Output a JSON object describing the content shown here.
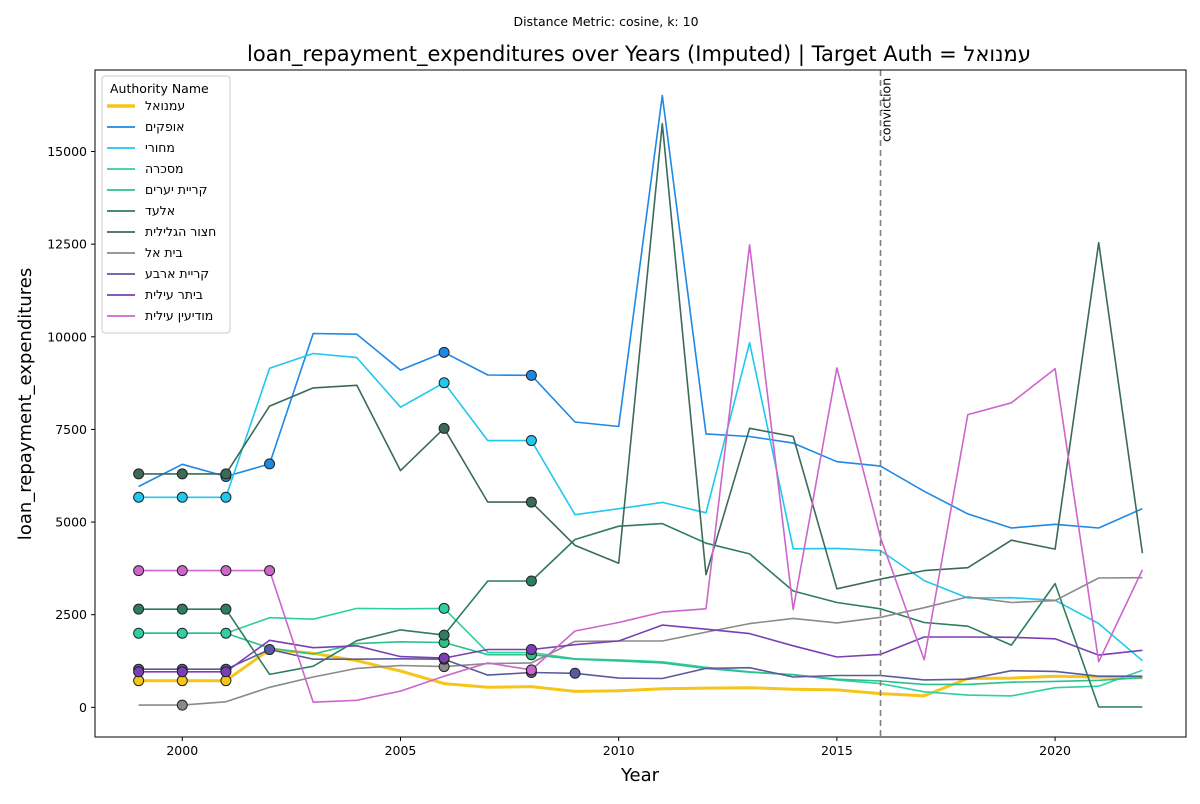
{
  "chart_data": {
    "type": "line",
    "suptitle": "Distance Metric: cosine, k: 10",
    "title": "loan_repayment_expenditures over Years (Imputed) | Target Auth = עמנואל",
    "xlabel": "Year",
    "ylabel": "loan_repayment_expenditures",
    "xlim": [
      1998,
      2023
    ],
    "ylim": [
      -800,
      17200
    ],
    "xticks": [
      2000,
      2005,
      2010,
      2015,
      2020
    ],
    "yticks": [
      0,
      2500,
      5000,
      7500,
      10000,
      12500,
      15000
    ],
    "ytick_labels": [
      "0",
      "2500",
      "5000",
      "7500",
      "10000",
      "12500",
      "15000"
    ],
    "grid": false,
    "legend_title": "Authority Name",
    "legend_position": "top-left",
    "vline": {
      "x": 2016,
      "label": "conviction",
      "color": "#808080"
    },
    "x": [
      1999,
      2000,
      2001,
      2002,
      2003,
      2004,
      2005,
      2006,
      2007,
      2008,
      2009,
      2010,
      2011,
      2012,
      2013,
      2014,
      2015,
      2016,
      2017,
      2018,
      2019,
      2020,
      2021,
      2022
    ],
    "series": [
      {
        "name": "עמנואל",
        "color": "#f5c518",
        "width": 3,
        "values": [
          720,
          720,
          720,
          1560,
          1460,
          1260,
          980,
          640,
          540,
          560,
          430,
          450,
          500,
          520,
          530,
          490,
          470,
          370,
          310,
          780,
          790,
          840,
          820,
          800
        ],
        "imputed_years": [
          1999,
          2000,
          2001
        ]
      },
      {
        "name": "אופקים",
        "color": "#1e88e5",
        "width": 1.6,
        "values": [
          5960,
          6560,
          6230,
          6570,
          10090,
          10070,
          9100,
          9580,
          8970,
          8960,
          7700,
          7580,
          16510,
          7380,
          7310,
          7130,
          6630,
          6510,
          5830,
          5220,
          4840,
          4940,
          4840,
          5360
        ],
        "imputed_years": [
          2001,
          2002,
          2006,
          2008
        ]
      },
      {
        "name": "מחורי",
        "color": "#1ec8ee",
        "width": 1.6,
        "values": [
          5670,
          5670,
          5670,
          9150,
          9550,
          9440,
          8100,
          8760,
          7200,
          7200,
          5200,
          5360,
          5530,
          5250,
          9840,
          4280,
          4290,
          4230,
          3420,
          2950,
          2960,
          2890,
          2260,
          1260
        ],
        "imputed_years": [
          1999,
          2000,
          2001,
          2006,
          2008
        ]
      },
      {
        "name": "מסכרה",
        "color": "#2ecfa2",
        "width": 1.6,
        "values": [
          2000,
          2000,
          2000,
          2420,
          2380,
          2670,
          2660,
          2670,
          1480,
          1480,
          1310,
          1280,
          1230,
          1080,
          960,
          880,
          740,
          640,
          420,
          330,
          310,
          530,
          570,
          1000
        ],
        "imputed_years": [
          1999,
          2000,
          2001,
          2006
        ]
      },
      {
        "name": "קריית יערים",
        "color": "#2cc08a",
        "width": 1.6,
        "values": [
          2000,
          2000,
          2000,
          1600,
          1440,
          1720,
          1770,
          1750,
          1420,
          1420,
          1300,
          1250,
          1200,
          1050,
          950,
          880,
          760,
          710,
          620,
          620,
          680,
          700,
          730,
          800
        ],
        "imputed_years": [
          2006,
          2008
        ]
      },
      {
        "name": "אלעד",
        "color": "#2e7d5e",
        "width": 1.6,
        "values": [
          2650,
          2650,
          2650,
          890,
          1110,
          1800,
          2090,
          1950,
          3410,
          3410,
          4530,
          4890,
          4960,
          4430,
          4140,
          3140,
          2830,
          2660,
          2290,
          2190,
          1680,
          3340,
          10,
          10
        ],
        "imputed_years": [
          1999,
          2000,
          2001,
          2006,
          2008
        ]
      },
      {
        "name": "חצור הגלילית",
        "color": "#3b6b58",
        "width": 1.6,
        "values": [
          6300,
          6300,
          6300,
          8130,
          8620,
          8690,
          6390,
          7530,
          5540,
          5540,
          4370,
          3890,
          15750,
          3580,
          7530,
          7310,
          3200,
          3460,
          3690,
          3770,
          4510,
          4270,
          12540,
          4160
        ],
        "imputed_years": [
          1999,
          2000,
          2001,
          2006,
          2008
        ]
      },
      {
        "name": "בית אל",
        "color": "#8a8a8a",
        "width": 1.6,
        "values": [
          60,
          60,
          150,
          540,
          820,
          1050,
          1130,
          1100,
          1180,
          1200,
          1780,
          1790,
          1790,
          2030,
          2260,
          2400,
          2280,
          2430,
          2690,
          2980,
          2830,
          2880,
          3490,
          3500
        ],
        "imputed_years": [
          2000,
          2006
        ]
      },
      {
        "name": "קריית ארבע",
        "color": "#5a5aa0",
        "width": 1.6,
        "values": [
          1030,
          1030,
          1030,
          1560,
          1300,
          1300,
          1310,
          1300,
          870,
          940,
          920,
          790,
          780,
          1050,
          1070,
          820,
          860,
          860,
          740,
          760,
          990,
          970,
          840,
          840
        ],
        "imputed_years": [
          1999,
          2000,
          2001,
          2002,
          2006,
          2008,
          2009
        ]
      },
      {
        "name": "ביתר עילית",
        "color": "#7b3fb5",
        "width": 1.6,
        "values": [
          960,
          960,
          960,
          1810,
          1610,
          1660,
          1370,
          1330,
          1560,
          1560,
          1690,
          1790,
          2220,
          2110,
          1990,
          1660,
          1360,
          1430,
          1900,
          1900,
          1890,
          1850,
          1410,
          1540
        ],
        "imputed_years": [
          1999,
          2000,
          2001,
          2006,
          2008
        ]
      },
      {
        "name": "מודיעין עילית",
        "color": "#cc66cc",
        "width": 1.6,
        "values": [
          3690,
          3690,
          3690,
          3690,
          140,
          190,
          440,
          840,
          1200,
          1010,
          2060,
          2290,
          2570,
          2660,
          12480,
          2640,
          9160,
          4580,
          1280,
          7900,
          8220,
          9140,
          1230,
          3710
        ],
        "imputed_years": [
          1999,
          2000,
          2001,
          2002,
          2008
        ]
      }
    ]
  }
}
